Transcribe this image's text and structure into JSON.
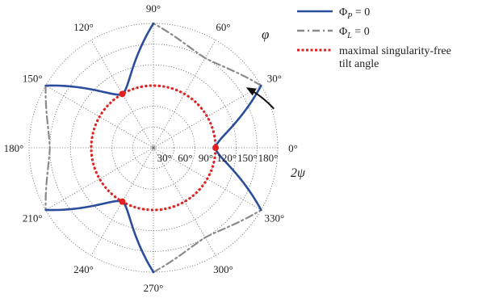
{
  "chart_data": {
    "type": "polar",
    "angular_ticks": [
      "0°",
      "30°",
      "60°",
      "90°",
      "120°",
      "150°",
      "180°",
      "210°",
      "240°",
      "270°",
      "300°",
      "330°"
    ],
    "radial_ticks": [
      "30°",
      "60°",
      "90°",
      "120°",
      "150°",
      "180°"
    ],
    "radial_max": 180,
    "radial_axis_label": "2ψ",
    "rotation_label": "φ",
    "grid": true,
    "legend_position": "top-right",
    "legend": [
      {
        "id": "phiP",
        "math_main": "Φ",
        "math_sub": "P",
        "suffix": " = 0",
        "color": "#2a4d9c",
        "style": "solid"
      },
      {
        "id": "phiL",
        "math_main": "Φ",
        "math_sub": "L",
        "suffix": " = 0",
        "color": "#8a8a8a",
        "style": "dash-dot"
      },
      {
        "id": "tilt",
        "lines": [
          "maximal singularity-free",
          "tilt angle"
        ],
        "color": "#e02020",
        "style": "dotted"
      }
    ],
    "series": [
      {
        "id": "phiP",
        "lobes": [
          {
            "center_deg": 0,
            "tip_r": 90,
            "half_width_deg": 30
          },
          {
            "center_deg": 120,
            "tip_r": 90,
            "half_width_deg": 30
          },
          {
            "center_deg": 240,
            "tip_r": 90,
            "half_width_deg": 30
          }
        ]
      },
      {
        "id": "phiL",
        "lobes": [
          {
            "center_deg": 60,
            "tip_r": 150,
            "half_width_deg": 30
          },
          {
            "center_deg": 180,
            "tip_r": 150,
            "half_width_deg": 30
          },
          {
            "center_deg": 300,
            "tip_r": 150,
            "half_width_deg": 30
          }
        ]
      },
      {
        "id": "tilt",
        "radius": 90
      }
    ],
    "markers": [
      {
        "theta": 0,
        "r": 90
      },
      {
        "theta": 120,
        "r": 90
      },
      {
        "theta": 240,
        "r": 90
      }
    ]
  }
}
